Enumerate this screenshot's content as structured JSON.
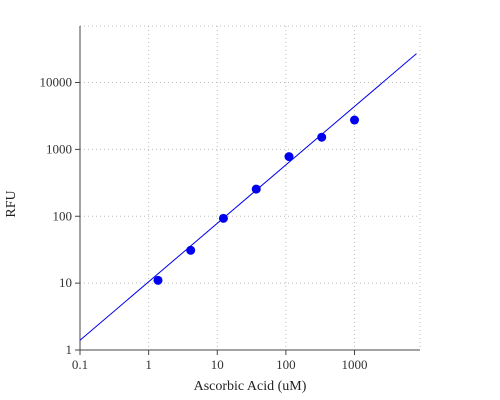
{
  "chart_data": {
    "type": "scatter",
    "title": "",
    "xlabel": "Ascorbic Acid (uM)",
    "ylabel": "RFU",
    "x_scale": "log",
    "y_scale": "log",
    "xlim": [
      0.1,
      9000
    ],
    "ylim": [
      1,
      70000
    ],
    "x_ticks": [
      0.1,
      1,
      10,
      100,
      1000
    ],
    "x_tick_labels": [
      "0.1",
      "1",
      "10",
      "100",
      "1000"
    ],
    "y_ticks": [
      1,
      10,
      100,
      1000,
      10000
    ],
    "y_tick_labels": [
      "1",
      "10",
      "100",
      "1000",
      "10000"
    ],
    "grid": true,
    "legend": "none",
    "series": [
      {
        "type": "scatter",
        "x": [
          1.37,
          4.1,
          12.3,
          37,
          111,
          333,
          1000
        ],
        "y": [
          11,
          31,
          93,
          255,
          780,
          1520,
          2750
        ],
        "color": "#0000ee"
      },
      {
        "type": "line",
        "x": [
          0.1,
          8000
        ],
        "y": [
          1.4,
          27000
        ],
        "color": "#0000ee"
      }
    ]
  }
}
